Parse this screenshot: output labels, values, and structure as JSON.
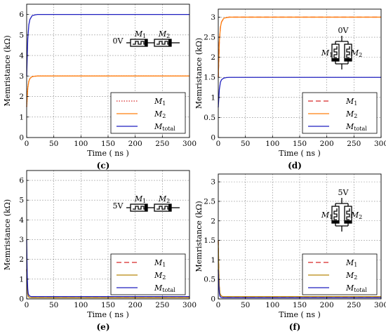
{
  "chart_data": [
    {
      "type": "line",
      "caption": "(c)",
      "xlabel": "Time ( ns )",
      "ylabel": "Memristance (kΩ)",
      "xlim": [
        0,
        300
      ],
      "ylim": [
        0,
        6.5
      ],
      "xticks": [
        0,
        50,
        100,
        150,
        200,
        250,
        300
      ],
      "yticks": [
        0,
        1,
        2,
        3,
        4,
        5,
        6
      ],
      "grid": true,
      "legend_position": "bottom-right",
      "circuit": {
        "type": "series",
        "voltage": "0V",
        "labels": [
          "M",
          "M"
        ],
        "subs": [
          "1",
          "2"
        ]
      },
      "series": [
        {
          "name": "M",
          "sub": "1",
          "color": "#d62728",
          "dash": "dotted",
          "x": [
            0,
            2,
            4,
            6,
            10,
            15,
            20,
            30,
            300
          ],
          "y": [
            1.5,
            2.4,
            2.75,
            2.88,
            2.97,
            2.99,
            3.0,
            3.0,
            3.0
          ]
        },
        {
          "name": "M",
          "sub": "2",
          "color": "#ff7f0e",
          "dash": "solid",
          "x": [
            0,
            2,
            4,
            6,
            10,
            15,
            20,
            30,
            300
          ],
          "y": [
            1.5,
            2.4,
            2.75,
            2.88,
            2.97,
            2.99,
            3.0,
            3.0,
            3.0
          ]
        },
        {
          "name": "M",
          "sub": "total",
          "color": "#1f1fbf",
          "dash": "solid",
          "x": [
            0,
            2,
            4,
            6,
            10,
            15,
            20,
            30,
            300
          ],
          "y": [
            3.0,
            4.8,
            5.5,
            5.76,
            5.94,
            5.98,
            6.0,
            6.0,
            6.0
          ]
        }
      ]
    },
    {
      "type": "line",
      "caption": "(d)",
      "xlabel": "Time ( ns )",
      "ylabel": "Memristance (kΩ)",
      "xlim": [
        0,
        300
      ],
      "ylim": [
        0,
        3.2
      ],
      "xticks": [
        0,
        50,
        100,
        150,
        200,
        250,
        300
      ],
      "yticks": [
        0,
        0.5,
        1,
        1.5,
        2,
        2.5,
        3
      ],
      "grid": true,
      "legend_position": "bottom-right",
      "circuit": {
        "type": "parallel",
        "voltage": "0V",
        "labels": [
          "M",
          "M"
        ],
        "subs": [
          "1",
          "2"
        ]
      },
      "series": [
        {
          "name": "M",
          "sub": "1",
          "color": "#d62728",
          "dash": "dashed",
          "x": [
            0,
            2,
            4,
            6,
            10,
            15,
            20,
            30,
            300
          ],
          "y": [
            1.5,
            2.4,
            2.75,
            2.88,
            2.97,
            2.99,
            3.0,
            3.0,
            3.0
          ]
        },
        {
          "name": "M",
          "sub": "2",
          "color": "#ff7f0e",
          "dash": "solid",
          "x": [
            0,
            2,
            4,
            6,
            10,
            15,
            20,
            30,
            300
          ],
          "y": [
            1.5,
            2.4,
            2.75,
            2.88,
            2.97,
            2.99,
            3.0,
            3.0,
            3.0
          ]
        },
        {
          "name": "M",
          "sub": "total",
          "color": "#1f1fbf",
          "dash": "solid",
          "x": [
            0,
            2,
            4,
            6,
            10,
            15,
            20,
            30,
            300
          ],
          "y": [
            0.75,
            1.2,
            1.38,
            1.44,
            1.48,
            1.495,
            1.5,
            1.5,
            1.5
          ]
        }
      ]
    },
    {
      "type": "line",
      "caption": "(e)",
      "xlabel": "Time ( ns )",
      "ylabel": "Memristance (kΩ)",
      "xlim": [
        0,
        300
      ],
      "ylim": [
        0,
        6.5
      ],
      "xticks": [
        0,
        50,
        100,
        150,
        200,
        250,
        300
      ],
      "yticks": [
        0,
        1,
        2,
        3,
        4,
        5,
        6
      ],
      "grid": true,
      "legend_position": "bottom-right",
      "circuit": {
        "type": "series",
        "voltage": "5V",
        "labels": [
          "M",
          "M"
        ],
        "subs": [
          "1",
          "2"
        ]
      },
      "series": [
        {
          "name": "M",
          "sub": "1",
          "color": "#d62728",
          "dash": "dashed",
          "x": [
            0,
            1,
            2,
            3,
            5,
            8,
            12,
            20,
            300
          ],
          "y": [
            1.5,
            0.6,
            0.25,
            0.12,
            0.07,
            0.06,
            0.06,
            0.06,
            0.06
          ]
        },
        {
          "name": "M",
          "sub": "2",
          "color": "#b8860b",
          "dash": "solid",
          "x": [
            0,
            1,
            2,
            3,
            5,
            8,
            12,
            20,
            300
          ],
          "y": [
            1.5,
            0.6,
            0.25,
            0.12,
            0.07,
            0.06,
            0.06,
            0.06,
            0.06
          ]
        },
        {
          "name": "M",
          "sub": "total",
          "color": "#1f1fbf",
          "dash": "solid",
          "x": [
            0,
            1,
            2,
            3,
            5,
            8,
            12,
            20,
            300
          ],
          "y": [
            3.0,
            1.2,
            0.5,
            0.25,
            0.15,
            0.12,
            0.12,
            0.12,
            0.12
          ]
        }
      ]
    },
    {
      "type": "line",
      "caption": "(f)",
      "xlabel": "Time ( ns )",
      "ylabel": "Memristance (kΩ)",
      "xlim": [
        0,
        300
      ],
      "ylim": [
        0,
        3.2
      ],
      "xticks": [
        0,
        50,
        100,
        150,
        200,
        250,
        300
      ],
      "yticks": [
        0,
        0.5,
        1,
        1.5,
        2,
        2.5,
        3
      ],
      "grid": true,
      "legend_position": "bottom-right",
      "circuit": {
        "type": "parallel",
        "voltage": "5V",
        "labels": [
          "M",
          "M"
        ],
        "subs": [
          "1",
          "2"
        ]
      },
      "series": [
        {
          "name": "M",
          "sub": "1",
          "color": "#d62728",
          "dash": "dashed",
          "x": [
            0,
            1,
            2,
            3,
            5,
            8,
            12,
            20,
            300
          ],
          "y": [
            1.5,
            0.7,
            0.3,
            0.15,
            0.08,
            0.06,
            0.06,
            0.06,
            0.06
          ]
        },
        {
          "name": "M",
          "sub": "2",
          "color": "#b8860b",
          "dash": "solid",
          "x": [
            0,
            1,
            2,
            3,
            5,
            8,
            12,
            20,
            300
          ],
          "y": [
            1.5,
            0.7,
            0.3,
            0.15,
            0.08,
            0.06,
            0.06,
            0.06,
            0.06
          ]
        },
        {
          "name": "M",
          "sub": "total",
          "color": "#1f1fbf",
          "dash": "solid",
          "x": [
            0,
            1,
            2,
            3,
            5,
            8,
            12,
            20,
            300
          ],
          "y": [
            0.75,
            0.35,
            0.15,
            0.07,
            0.04,
            0.03,
            0.03,
            0.03,
            0.03
          ]
        }
      ]
    }
  ]
}
